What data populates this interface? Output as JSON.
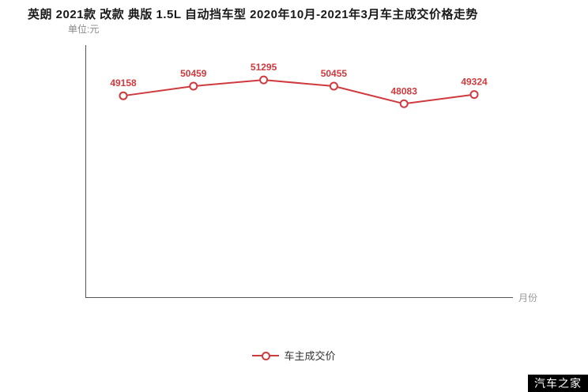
{
  "header": {
    "title": "英朗 2021款 改款 典版 1.5L 自动挡车型 2020年10月-2021年3月车主成交价格走势",
    "unit_label": "单位:元"
  },
  "axes": {
    "x_label": "月份"
  },
  "legend": {
    "label": "车主成交价"
  },
  "watermark": "汽车之家",
  "colors": {
    "line": "#cf3a3e",
    "label": "#cf3a3e",
    "axis": "#555555"
  },
  "chart_data": {
    "type": "line",
    "x": [
      1,
      2,
      3,
      4,
      5,
      6
    ],
    "values": [
      49158,
      50459,
      51295,
      50455,
      48083,
      49324
    ],
    "labels": [
      "49158",
      "50459",
      "51295",
      "50455",
      "48083",
      "49324"
    ],
    "title": "英朗 2021款 改款 典版 1.5L 自动挡车型 2020年10月-2021年3月车主成交价格走势",
    "xlabel": "月份",
    "ylabel": "单位:元",
    "ylim": [
      22000,
      56000
    ],
    "grid": false,
    "legend_position": "bottom-center",
    "series_name": "车主成交价"
  }
}
